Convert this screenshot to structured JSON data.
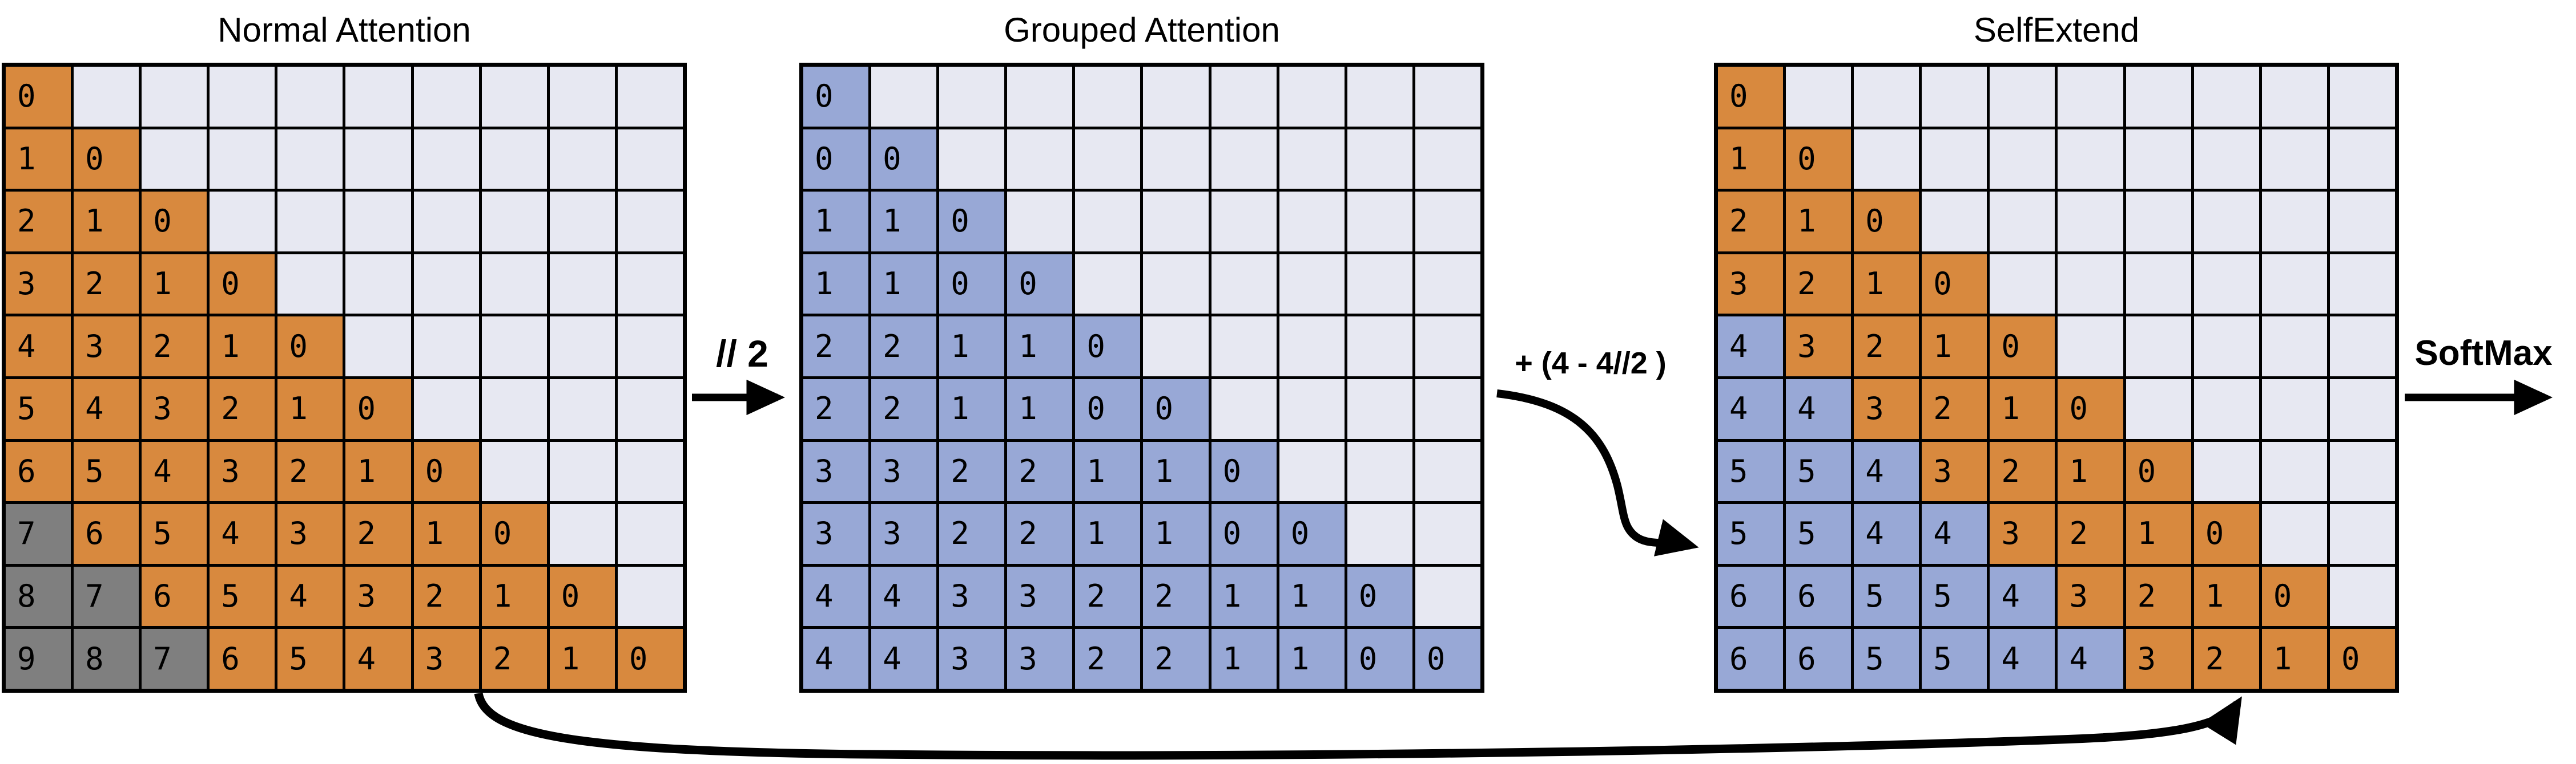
{
  "page": {
    "background": "#ffffff"
  },
  "colors": {
    "o": "#D8893E",
    "g": "#7F7F7F",
    "b": "#98A8D6",
    "e": "#E7E8F2",
    "line": "#000000",
    "text": "#000000"
  },
  "labels": {
    "floor_div": "// 2",
    "shift": "+ (4 - 4//2 )",
    "softmax": "SoftMax"
  },
  "grids": [
    {
      "id": "normal",
      "title": "Normal Attention",
      "cells": [
        [
          "0o",
          "",
          "",
          "",
          "",
          "",
          "",
          "",
          "",
          ""
        ],
        [
          "1o",
          "0o",
          "",
          "",
          "",
          "",
          "",
          "",
          "",
          ""
        ],
        [
          "2o",
          "1o",
          "0o",
          "",
          "",
          "",
          "",
          "",
          "",
          ""
        ],
        [
          "3o",
          "2o",
          "1o",
          "0o",
          "",
          "",
          "",
          "",
          "",
          ""
        ],
        [
          "4o",
          "3o",
          "2o",
          "1o",
          "0o",
          "",
          "",
          "",
          "",
          ""
        ],
        [
          "5o",
          "4o",
          "3o",
          "2o",
          "1o",
          "0o",
          "",
          "",
          "",
          ""
        ],
        [
          "6o",
          "5o",
          "4o",
          "3o",
          "2o",
          "1o",
          "0o",
          "",
          "",
          ""
        ],
        [
          "7g",
          "6o",
          "5o",
          "4o",
          "3o",
          "2o",
          "1o",
          "0o",
          "",
          ""
        ],
        [
          "8g",
          "7g",
          "6o",
          "5o",
          "4o",
          "3o",
          "2o",
          "1o",
          "0o",
          ""
        ],
        [
          "9g",
          "8g",
          "7g",
          "6o",
          "5o",
          "4o",
          "3o",
          "2o",
          "1o",
          "0o"
        ]
      ]
    },
    {
      "id": "grouped",
      "title": "Grouped Attention",
      "cells": [
        [
          "0b",
          "",
          "",
          "",
          "",
          "",
          "",
          "",
          "",
          ""
        ],
        [
          "0b",
          "0b",
          "",
          "",
          "",
          "",
          "",
          "",
          "",
          ""
        ],
        [
          "1b",
          "1b",
          "0b",
          "",
          "",
          "",
          "",
          "",
          "",
          ""
        ],
        [
          "1b",
          "1b",
          "0b",
          "0b",
          "",
          "",
          "",
          "",
          "",
          ""
        ],
        [
          "2b",
          "2b",
          "1b",
          "1b",
          "0b",
          "",
          "",
          "",
          "",
          ""
        ],
        [
          "2b",
          "2b",
          "1b",
          "1b",
          "0b",
          "0b",
          "",
          "",
          "",
          ""
        ],
        [
          "3b",
          "3b",
          "2b",
          "2b",
          "1b",
          "1b",
          "0b",
          "",
          "",
          ""
        ],
        [
          "3b",
          "3b",
          "2b",
          "2b",
          "1b",
          "1b",
          "0b",
          "0b",
          "",
          ""
        ],
        [
          "4b",
          "4b",
          "3b",
          "3b",
          "2b",
          "2b",
          "1b",
          "1b",
          "0b",
          ""
        ],
        [
          "4b",
          "4b",
          "3b",
          "3b",
          "2b",
          "2b",
          "1b",
          "1b",
          "0b",
          "0b"
        ]
      ]
    },
    {
      "id": "selfextend",
      "title": "SelfExtend",
      "cells": [
        [
          "0o",
          "",
          "",
          "",
          "",
          "",
          "",
          "",
          "",
          ""
        ],
        [
          "1o",
          "0o",
          "",
          "",
          "",
          "",
          "",
          "",
          "",
          ""
        ],
        [
          "2o",
          "1o",
          "0o",
          "",
          "",
          "",
          "",
          "",
          "",
          ""
        ],
        [
          "3o",
          "2o",
          "1o",
          "0o",
          "",
          "",
          "",
          "",
          "",
          ""
        ],
        [
          "4b",
          "3o",
          "2o",
          "1o",
          "0o",
          "",
          "",
          "",
          "",
          ""
        ],
        [
          "4b",
          "4b",
          "3o",
          "2o",
          "1o",
          "0o",
          "",
          "",
          "",
          ""
        ],
        [
          "5b",
          "5b",
          "4b",
          "3o",
          "2o",
          "1o",
          "0o",
          "",
          "",
          ""
        ],
        [
          "5b",
          "5b",
          "4b",
          "4b",
          "3o",
          "2o",
          "1o",
          "0o",
          "",
          ""
        ],
        [
          "6b",
          "6b",
          "5b",
          "5b",
          "4b",
          "3o",
          "2o",
          "1o",
          "0o",
          ""
        ],
        [
          "6b",
          "6b",
          "5b",
          "5b",
          "4b",
          "4b",
          "3o",
          "2o",
          "1o",
          "0o"
        ]
      ]
    }
  ]
}
